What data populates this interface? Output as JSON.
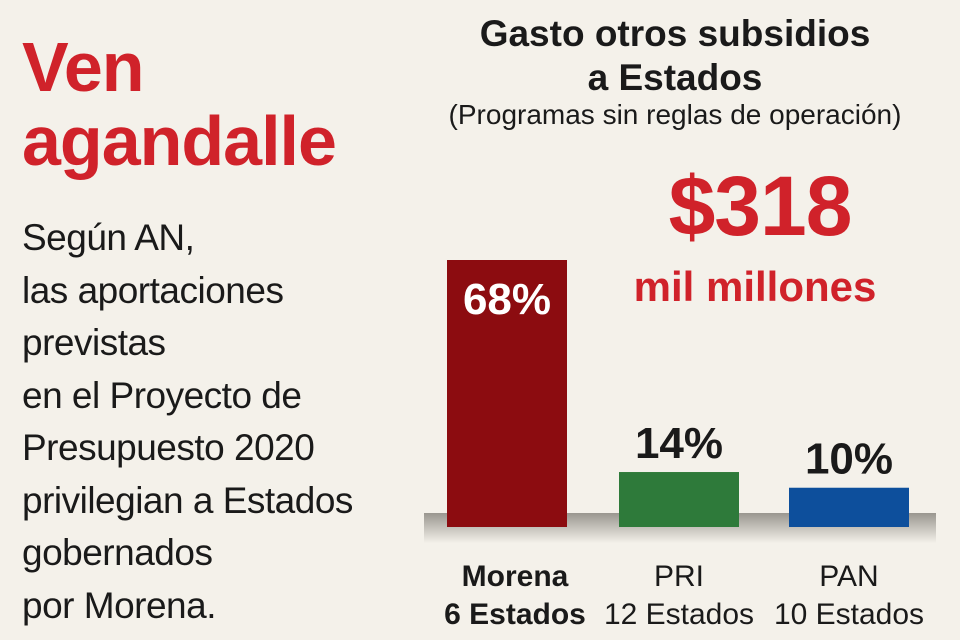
{
  "headline": [
    "Ven",
    "agandalle"
  ],
  "body_lines": [
    "Según AN,",
    "las aportaciones",
    "previstas",
    "en el Proyecto de",
    "Presupuesto 2020",
    "privilegian a Estados",
    "gobernados",
    "por Morena."
  ],
  "chart_data": {
    "type": "bar",
    "title_lines": [
      "Gasto otros subsidios",
      "a Estados"
    ],
    "subtitle": "(Programas sin reglas de operación)",
    "total": "$318",
    "total_unit": "mil millones",
    "categories": [
      "Morena",
      "PRI",
      "PAN"
    ],
    "subcategories": [
      "6 Estados",
      "12 Estados",
      "10 Estados"
    ],
    "values": [
      68,
      14,
      10
    ],
    "value_labels": [
      "68%",
      "14%",
      "10%"
    ],
    "colors": [
      "#8c0c10",
      "#2e7a3a",
      "#0d4f9c"
    ],
    "ylim": [
      0,
      68
    ]
  }
}
